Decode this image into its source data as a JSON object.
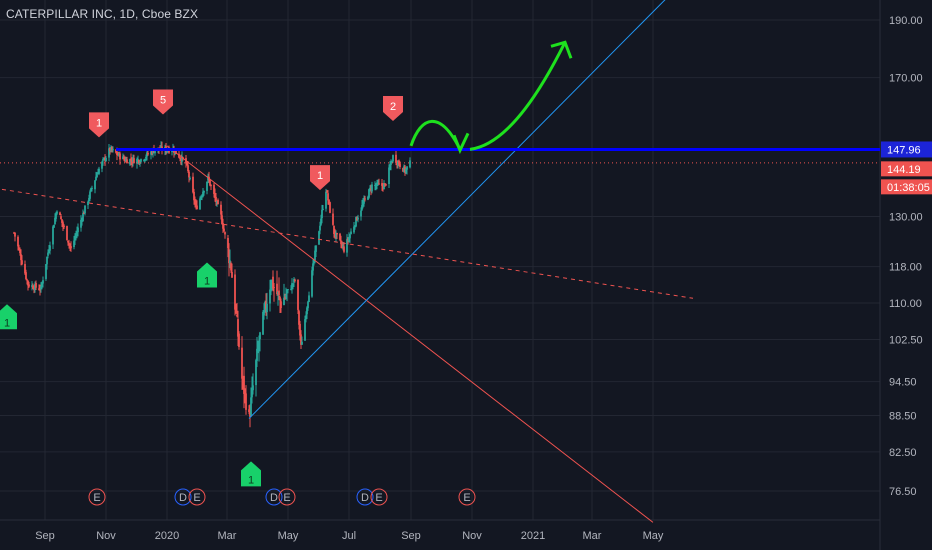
{
  "header": {
    "title": "CATERPILLAR INC, 1D, Cboe BZX"
  },
  "colors": {
    "background": "#131722",
    "grid": "#232733",
    "up": "#26a69a",
    "down": "#ef5350",
    "resistance": "#0000ff",
    "trend_up": "#2196f3",
    "trend_down": "#ef5350",
    "arrow": "#1ee11e",
    "marker_up": "#18d16a",
    "marker_down": "#f05a5e",
    "last_price_tag": "#ef5350",
    "resistance_tag": "#1c24d8"
  },
  "chart_data": {
    "type": "candlestick",
    "title": "CATERPILLAR INC, 1D, Cboe BZX",
    "price_axis": {
      "ticks": [
        "190.00",
        "170.00",
        "147.96",
        "144.19",
        "130.00",
        "118.00",
        "110.00",
        "102.50",
        "94.50",
        "88.50",
        "82.50",
        "76.50"
      ],
      "scale": "log",
      "ylim": [
        71,
        205
      ]
    },
    "time_axis": {
      "ticks": [
        "Sep",
        "Nov",
        "2020",
        "Mar",
        "May",
        "Jul",
        "Sep",
        "Nov",
        "2021",
        "Mar",
        "May"
      ]
    },
    "price_path": [
      {
        "date": "2019-08-01",
        "close": 126
      },
      {
        "date": "2019-08-15",
        "close": 114
      },
      {
        "date": "2019-08-28",
        "close": 113
      },
      {
        "date": "2019-09-13",
        "close": 132
      },
      {
        "date": "2019-09-27",
        "close": 122
      },
      {
        "date": "2019-10-11",
        "close": 132
      },
      {
        "date": "2019-10-24",
        "close": 142
      },
      {
        "date": "2019-11-05",
        "close": 148
      },
      {
        "date": "2019-11-20",
        "close": 145
      },
      {
        "date": "2019-12-05",
        "close": 145
      },
      {
        "date": "2019-12-20",
        "close": 148
      },
      {
        "date": "2020-01-07",
        "close": 148
      },
      {
        "date": "2020-01-20",
        "close": 144
      },
      {
        "date": "2020-01-30",
        "close": 132
      },
      {
        "date": "2020-02-11",
        "close": 140
      },
      {
        "date": "2020-02-24",
        "close": 130
      },
      {
        "date": "2020-03-05",
        "close": 118
      },
      {
        "date": "2020-03-16",
        "close": 95
      },
      {
        "date": "2020-03-23",
        "close": 88
      },
      {
        "date": "2020-04-02",
        "close": 102
      },
      {
        "date": "2020-04-14",
        "close": 115
      },
      {
        "date": "2020-04-24",
        "close": 110
      },
      {
        "date": "2020-05-08",
        "close": 115
      },
      {
        "date": "2020-05-14",
        "close": 101
      },
      {
        "date": "2020-05-26",
        "close": 118
      },
      {
        "date": "2020-06-08",
        "close": 137
      },
      {
        "date": "2020-06-16",
        "close": 126
      },
      {
        "date": "2020-06-26",
        "close": 122
      },
      {
        "date": "2020-07-13",
        "close": 132
      },
      {
        "date": "2020-07-24",
        "close": 138
      },
      {
        "date": "2020-08-06",
        "close": 138
      },
      {
        "date": "2020-08-14",
        "close": 146
      },
      {
        "date": "2020-08-26",
        "close": 142
      },
      {
        "date": "2020-08-31",
        "close": 144
      }
    ],
    "levels": [
      {
        "name": "resistance",
        "value": 147.96
      },
      {
        "name": "last_price",
        "value": 144.19,
        "countdown": "01:38:05"
      }
    ],
    "trendlines": [
      {
        "name": "falling",
        "from": {
          "date": "2020-01-01",
          "price": 149
        },
        "to": {
          "date": "2021-05-01",
          "price": 72
        }
      },
      {
        "name": "rising",
        "from": {
          "date": "2020-03-23",
          "price": 88
        },
        "to": {
          "date": "2021-06-01",
          "price": 205
        }
      },
      {
        "name": "long-term dashed",
        "from": {
          "date": "2019-07-20",
          "price": 137
        },
        "to": {
          "date": "2021-06-10",
          "price": 111
        }
      }
    ],
    "signal_markers": [
      {
        "type": "sell",
        "label": "1",
        "date": "2019-10-25",
        "price": 155
      },
      {
        "type": "sell",
        "label": "5",
        "date": "2019-12-28",
        "price": 162
      },
      {
        "type": "sell",
        "label": "1",
        "date": "2020-06-02",
        "price": 140
      },
      {
        "type": "sell",
        "label": "2",
        "date": "2020-08-14",
        "price": 160
      },
      {
        "type": "buy",
        "label": "1",
        "date": "2019-07-25",
        "price": 107
      },
      {
        "type": "buy",
        "label": "1",
        "date": "2020-02-10",
        "price": 116
      },
      {
        "type": "buy",
        "label": "1",
        "date": "2020-03-25",
        "price": 79
      }
    ],
    "events": [
      {
        "label": "E",
        "date": "2019-10-23"
      },
      {
        "label": "D",
        "date": "2020-01-17"
      },
      {
        "label": "E",
        "date": "2020-01-31"
      },
      {
        "label": "D",
        "date": "2020-04-17"
      },
      {
        "label": "E",
        "date": "2020-04-30"
      },
      {
        "label": "D",
        "date": "2020-07-17"
      },
      {
        "label": "E",
        "date": "2020-07-31"
      },
      {
        "label": "E",
        "date": "2020-10-27"
      }
    ],
    "projection_arrow": "curved green arrow from Sep 2020 dipping to ~148 in Oct then rising toward ~185 by Feb 2021"
  }
}
